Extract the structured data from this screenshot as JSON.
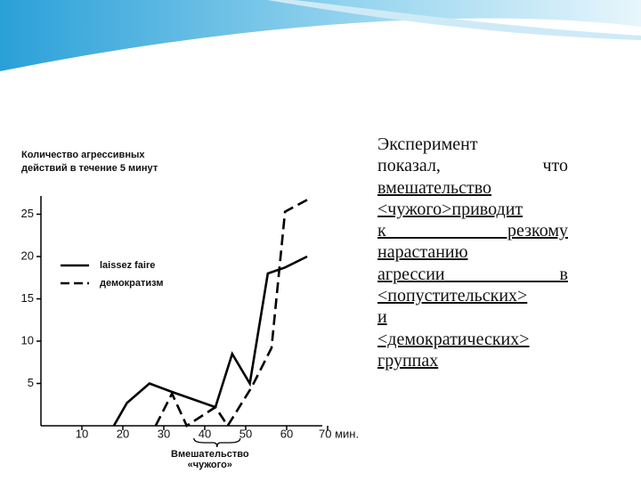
{
  "chart_data": {
    "type": "line",
    "ylabel": [
      "Количество агрессивных",
      "действий в течение 5 минут"
    ],
    "series": [
      {
        "name": "laissez faire",
        "color": "#000000",
        "dash": false,
        "x": [
          17.8,
          21,
          26.5,
          32,
          42.6,
          46.7,
          51,
          55.4,
          59.6,
          65
        ],
        "values": [
          0,
          2.7,
          5,
          4,
          2.2,
          8.5,
          5,
          18,
          18.7,
          20
        ]
      },
      {
        "name": "демократизм",
        "color": "#000000",
        "dash": true,
        "x": [
          28,
          32,
          35.6,
          42.6,
          45.6,
          51.5,
          56.3,
          59.6,
          65
        ],
        "values": [
          0,
          3.8,
          0,
          2.2,
          0,
          4.6,
          9.2,
          25.3,
          26.7
        ]
      }
    ],
    "xlim": [
      0,
      75
    ],
    "ylim": [
      0,
      28
    ],
    "xticks": [
      10,
      20,
      30,
      40,
      50,
      60,
      {
        "value": 70,
        "label": "70 мин."
      }
    ],
    "yticks": [
      5,
      10,
      15,
      20,
      25
    ],
    "annotation": {
      "x": 43,
      "lines": [
        "Вмешательство",
        "«чужого»"
      ]
    }
  },
  "text": {
    "plain": [
      "Эксперимент",
      "показал, что"
    ],
    "link": [
      "вмешательство",
      "<чужого>приводит",
      "к резкому",
      "нарастанию",
      "агрессии в",
      "<попустительских>",
      "и",
      "<демократических>",
      "группах"
    ]
  }
}
